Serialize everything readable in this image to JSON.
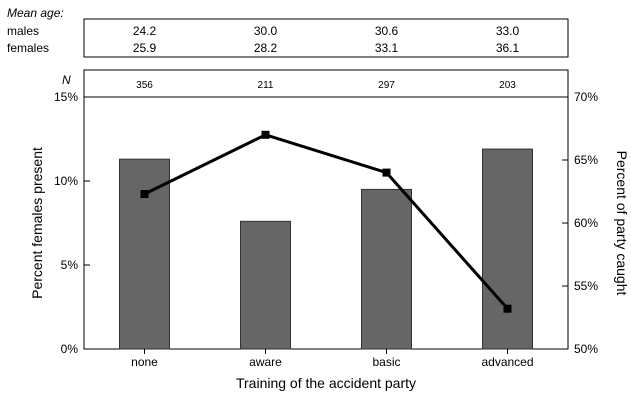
{
  "age_table": {
    "title": "Mean age:",
    "rows": [
      {
        "label": "males",
        "values": [
          "24.2",
          "30.0",
          "30.6",
          "33.0"
        ]
      },
      {
        "label": "females",
        "values": [
          "25.9",
          "28.2",
          "33.1",
          "36.1"
        ]
      }
    ]
  },
  "n_row": {
    "label": "N",
    "values": [
      "356",
      "211",
      "297",
      "203"
    ]
  },
  "chart_data": {
    "type": "bar",
    "xlabel": "Training of the accident party",
    "categories": [
      "none",
      "aware",
      "basic",
      "advanced"
    ],
    "series": [
      {
        "type": "bar",
        "axis": "left",
        "values": [
          11.3,
          7.6,
          9.5,
          11.9
        ],
        "color": "#666666"
      },
      {
        "type": "line",
        "axis": "right",
        "values": [
          62.3,
          67.0,
          64.0,
          53.2
        ],
        "color": "#000000"
      }
    ],
    "y_left": {
      "label": "Percent females present",
      "range": [
        0,
        15
      ],
      "ticks": [
        "0%",
        "5%",
        "10%",
        "15%"
      ],
      "tick_values": [
        0,
        5,
        10,
        15
      ]
    },
    "y_right": {
      "label": "Percent of party caught",
      "range": [
        50,
        70
      ],
      "ticks": [
        "50%",
        "55%",
        "60%",
        "65%",
        "70%"
      ],
      "tick_values": [
        50,
        55,
        60,
        65,
        70
      ]
    },
    "grid": false,
    "legend": "none"
  }
}
